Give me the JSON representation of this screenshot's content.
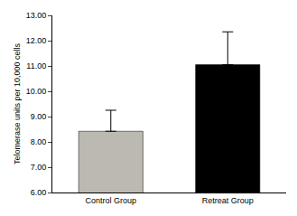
{
  "chart_data": {
    "type": "bar",
    "y_label": "Telomerase units per 10,000 cells",
    "categories": [
      "Control Group",
      "Retreat Group"
    ],
    "values": [
      8.42,
      11.05
    ],
    "error": [
      0.83,
      1.3
    ],
    "colors": [
      "#bcb9b1",
      "#000000"
    ],
    "ylim": [
      6,
      13
    ],
    "yticks": [
      {
        "value": 6,
        "label": "6.00"
      },
      {
        "value": 7,
        "label": "7.00"
      },
      {
        "value": 8,
        "label": "8.00"
      },
      {
        "value": 9,
        "label": "9.00"
      },
      {
        "value": 10,
        "label": "10.00"
      },
      {
        "value": 11,
        "label": "11.00"
      },
      {
        "value": 12,
        "label": "12.00"
      },
      {
        "value": 13,
        "label": "13.00"
      }
    ],
    "grid": false
  }
}
